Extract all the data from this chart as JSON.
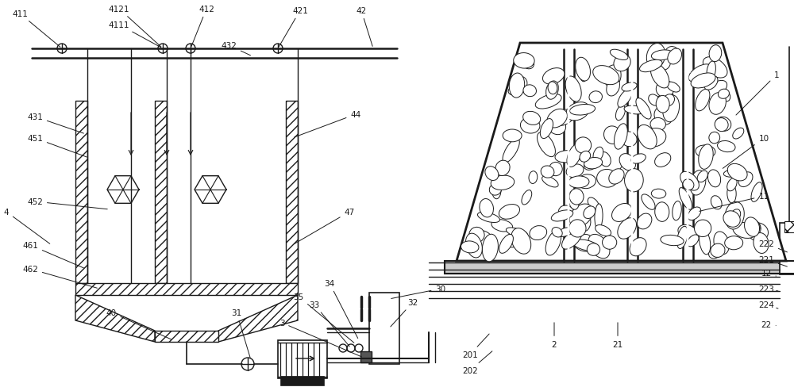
{
  "bg": "#ffffff",
  "lc": "#1a1a1a",
  "figsize": [
    10.0,
    4.89
  ],
  "dpi": 100,
  "fs": 7.5
}
